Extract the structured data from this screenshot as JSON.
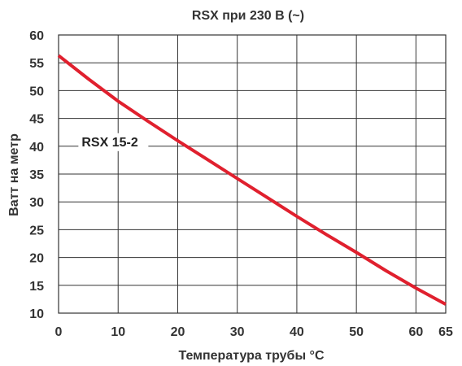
{
  "chart_data": {
    "type": "line",
    "title": "RSX при 230 В (~)",
    "xlabel": "Температура трубы °C",
    "ylabel": "Ватт на метр",
    "xlim": [
      0,
      65
    ],
    "ylim": [
      10,
      60
    ],
    "x_ticks": [
      0,
      10,
      20,
      30,
      40,
      50,
      60,
      65
    ],
    "y_ticks": [
      10,
      15,
      20,
      25,
      30,
      35,
      40,
      45,
      50,
      55,
      60
    ],
    "grid": true,
    "series": [
      {
        "name": "RSX 15-2",
        "color": "#e0202e",
        "x": [
          0,
          5,
          10,
          15,
          20,
          25,
          30,
          35,
          40,
          45,
          50,
          55,
          60,
          65
        ],
        "y": [
          56.3,
          52.1,
          48.1,
          44.5,
          41.0,
          37.6,
          34.2,
          30.8,
          27.4,
          24.1,
          20.9,
          17.6,
          14.5,
          11.6
        ]
      }
    ]
  }
}
